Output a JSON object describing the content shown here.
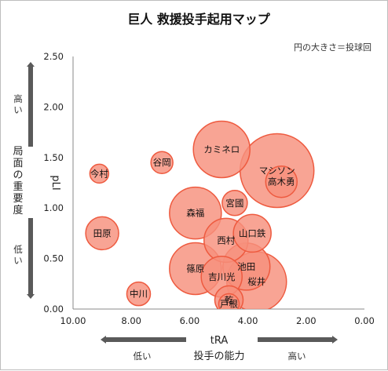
{
  "chart_data": {
    "type": "bubble",
    "title": "巨人 救援投手起用マップ",
    "subtitle": "円の大きさ＝投球回",
    "xlabel": "tRA",
    "xlabel_sub": "投手の能力",
    "ylabel": "pLI",
    "ylabel_sub": "局面の重要度",
    "x_high_label": "高い",
    "x_low_label": "低い",
    "y_high_label": "高い",
    "y_low_label": "低い",
    "xlim": [
      10.0,
      0.0
    ],
    "ylim": [
      0.0,
      2.5
    ],
    "x_ticks": [
      "10.00",
      "8.00",
      "6.00",
      "4.00",
      "2.00",
      "0.00"
    ],
    "y_ticks": [
      "0.00",
      "0.50",
      "1.00",
      "1.50",
      "2.00",
      "2.50"
    ],
    "colors": {
      "fill": "#f7907c",
      "stroke": "#ee5a3f",
      "axis": "#888888",
      "arrow": "#5a5a5a"
    },
    "points": [
      {
        "name": "カミネロ",
        "x": 4.9,
        "y": 1.58,
        "r": 36
      },
      {
        "name": "マシソン",
        "x": 3.0,
        "y": 1.37,
        "r": 47
      },
      {
        "name": "高木勇",
        "x": 2.85,
        "y": 1.26,
        "r": 20
      },
      {
        "name": "今村",
        "x": 9.1,
        "y": 1.34,
        "r": 12
      },
      {
        "name": "谷岡",
        "x": 6.95,
        "y": 1.45,
        "r": 14
      },
      {
        "name": "宮國",
        "x": 4.45,
        "y": 1.05,
        "r": 16
      },
      {
        "name": "森福",
        "x": 5.8,
        "y": 0.95,
        "r": 33
      },
      {
        "name": "田原",
        "x": 9.0,
        "y": 0.75,
        "r": 21
      },
      {
        "name": "山口鉄",
        "x": 3.85,
        "y": 0.75,
        "r": 24
      },
      {
        "name": "西村",
        "x": 4.75,
        "y": 0.68,
        "r": 28
      },
      {
        "name": "篠原",
        "x": 5.8,
        "y": 0.4,
        "r": 33
      },
      {
        "name": "池田",
        "x": 4.05,
        "y": 0.42,
        "r": 30
      },
      {
        "name": "吉川光",
        "x": 4.9,
        "y": 0.32,
        "r": 26
      },
      {
        "name": "桜井",
        "x": 3.7,
        "y": 0.27,
        "r": 38
      },
      {
        "name": "中川",
        "x": 7.75,
        "y": 0.15,
        "r": 15
      },
      {
        "name": "乾",
        "x": 4.65,
        "y": 0.09,
        "r": 18
      },
      {
        "name": "戸根",
        "x": 4.65,
        "y": 0.05,
        "r": 13
      }
    ]
  }
}
